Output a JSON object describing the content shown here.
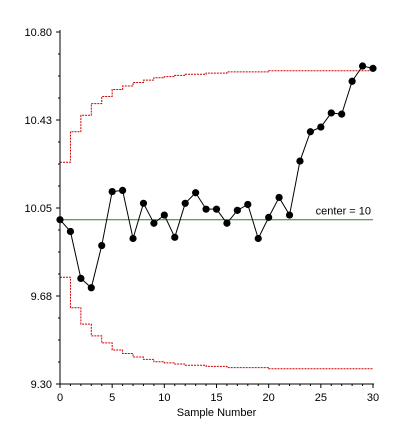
{
  "chart_data": {
    "type": "line",
    "title": "",
    "xlabel": "Sample Number",
    "ylabel": "",
    "xlim": [
      0,
      30
    ],
    "ylim": [
      9.3,
      10.8
    ],
    "x_ticks": [
      0,
      5,
      10,
      15,
      20,
      25,
      30
    ],
    "x_tick_labels": [
      "0",
      "5",
      "10",
      "15",
      "20",
      "25",
      "30"
    ],
    "y_ticks": [
      9.3,
      9.675,
      10.05,
      10.425,
      10.8
    ],
    "y_tick_labels": [
      "9.30",
      "9.68",
      "10.05",
      "10.43",
      "10.80"
    ],
    "center": {
      "value": 10,
      "label": "center = 10",
      "color": "#2e7d32"
    },
    "series": [
      {
        "values": [
          {
            "x": 0,
            "y": 10.0
          },
          {
            "x": 1,
            "y": 9.95
          },
          {
            "x": 2,
            "y": 9.75
          },
          {
            "x": 3,
            "y": 9.71
          },
          {
            "x": 4,
            "y": 9.89
          },
          {
            "x": 5,
            "y": 10.12
          },
          {
            "x": 6,
            "y": 10.125
          },
          {
            "x": 7,
            "y": 9.92
          },
          {
            "x": 8,
            "y": 10.07
          },
          {
            "x": 9,
            "y": 9.985
          },
          {
            "x": 10,
            "y": 10.02
          },
          {
            "x": 11,
            "y": 9.925
          },
          {
            "x": 12,
            "y": 10.07
          },
          {
            "x": 13,
            "y": 10.115
          },
          {
            "x": 14,
            "y": 10.045
          },
          {
            "x": 15,
            "y": 10.045
          },
          {
            "x": 16,
            "y": 9.985
          },
          {
            "x": 17,
            "y": 10.04
          },
          {
            "x": 18,
            "y": 10.065
          },
          {
            "x": 19,
            "y": 9.92
          },
          {
            "x": 20,
            "y": 10.01
          },
          {
            "x": 21,
            "y": 10.095
          },
          {
            "x": 22,
            "y": 10.02
          },
          {
            "x": 23,
            "y": 10.25
          },
          {
            "x": 24,
            "y": 10.375
          },
          {
            "x": 25,
            "y": 10.395
          },
          {
            "x": 26,
            "y": 10.455
          },
          {
            "x": 27,
            "y": 10.45
          },
          {
            "x": 28,
            "y": 10.59
          },
          {
            "x": 29,
            "y": 10.655
          },
          {
            "x": 30,
            "y": 10.645
          }
        ],
        "color": "#000000"
      }
    ],
    "upper_limit": {
      "color": "#cc0000",
      "values": [
        10.245,
        10.375,
        10.445,
        10.495,
        10.525,
        10.555,
        10.57,
        10.585,
        10.595,
        10.605,
        10.61,
        10.615,
        10.62,
        10.62,
        10.625,
        10.625,
        10.63,
        10.63,
        10.63,
        10.63,
        10.635,
        10.635,
        10.635,
        10.635,
        10.635,
        10.635,
        10.635,
        10.635,
        10.635,
        10.635
      ]
    },
    "lower_limit": {
      "color": "#cc0000",
      "values": [
        9.755,
        9.625,
        9.555,
        9.505,
        9.475,
        9.445,
        9.43,
        9.415,
        9.405,
        9.395,
        9.39,
        9.385,
        9.38,
        9.38,
        9.375,
        9.375,
        9.37,
        9.37,
        9.37,
        9.37,
        9.365,
        9.365,
        9.365,
        9.365,
        9.365,
        9.365,
        9.365,
        9.365,
        9.365,
        9.365
      ]
    },
    "grid": false,
    "legend": "none"
  }
}
